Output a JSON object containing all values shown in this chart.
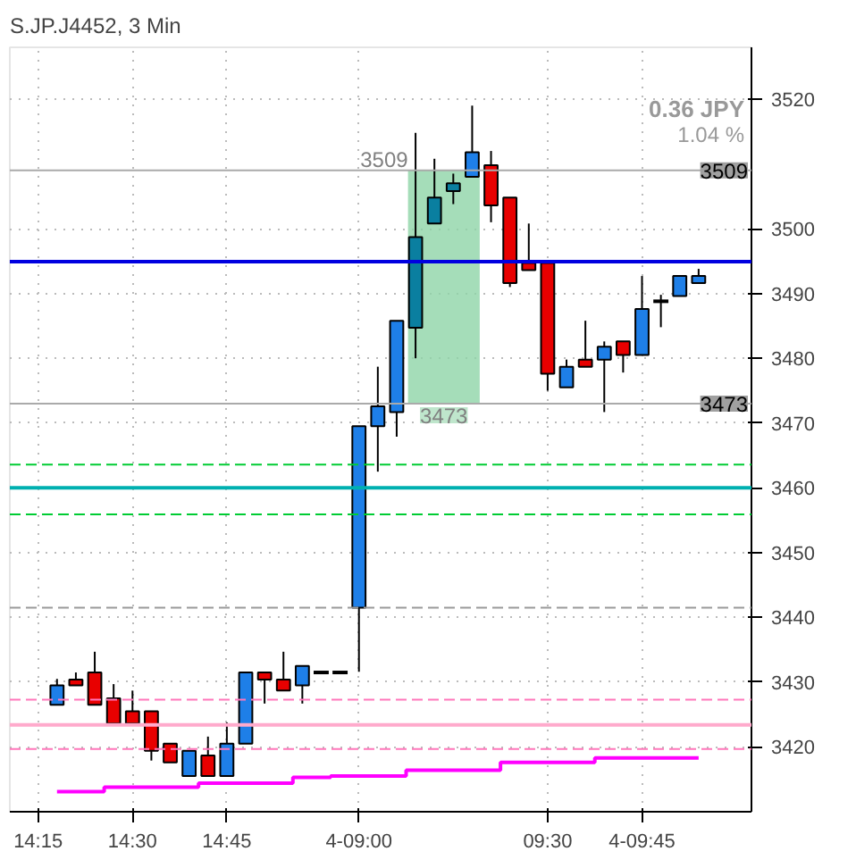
{
  "chart_data": {
    "type": "candlestick",
    "title": "S.JP.J4452, 3 Min",
    "categories": [
      "14:15",
      null,
      null,
      null,
      null,
      "14:30",
      null,
      null,
      null,
      null,
      "14:45",
      null,
      null,
      null,
      null,
      null,
      null,
      "4-09:00",
      null,
      null,
      null,
      null,
      null,
      null,
      null,
      null,
      null,
      "09:30",
      null,
      null,
      null,
      null,
      "4-09:45",
      null,
      null,
      null
    ],
    "ohlc": [
      null,
      [
        3426.5,
        3430.5,
        3426.5,
        3429.5
      ],
      [
        3430.4,
        3431.5,
        3429.5,
        3429.5
      ],
      [
        3431.5,
        3434.7,
        3426.5,
        3426.5
      ],
      [
        3427.5,
        3429.7,
        3423.6,
        3423.6
      ],
      [
        3425.5,
        3428.7,
        3423.6,
        3423.6
      ],
      [
        3425.5,
        3425.5,
        3417.9,
        3419.4
      ],
      [
        3420.5,
        3420.5,
        3417.6,
        3417.6
      ],
      [
        3415.5,
        3419.4,
        3415.5,
        3419.4
      ],
      [
        3418.7,
        3421.6,
        3415.5,
        3415.5
      ],
      [
        3415.5,
        3423.8,
        3415.5,
        3420.5
      ],
      [
        3420.5,
        3431.5,
        3420.5,
        3431.5
      ],
      [
        3431.5,
        3431.5,
        3426.7,
        3430.4
      ],
      [
        3430.4,
        3434.7,
        3428.7,
        3428.7
      ],
      [
        3429.5,
        3432.5,
        3426.7,
        3432.5
      ],
      [
        3431.5,
        3431.5,
        3431.5,
        3431.5
      ],
      [
        3431.5,
        3431.5,
        3431.5,
        3431.5
      ],
      [
        3441.5,
        3469.5,
        3431.6,
        3469.5
      ],
      [
        3469.5,
        3478.7,
        3462.5,
        3472.6
      ],
      [
        3471.7,
        3485.8,
        3467.9,
        3485.8
      ],
      [
        3484.7,
        3514.8,
        3480,
        3498.7
      ],
      [
        3500.8,
        3510.8,
        3500.8,
        3504.8
      ],
      [
        3505.8,
        3508.5,
        3503.8,
        3507
      ],
      [
        3508,
        3519,
        3508,
        3511.8
      ],
      [
        3509.8,
        3512,
        3501,
        3503.6
      ],
      [
        3504.8,
        3504.8,
        3491,
        3491.6
      ],
      [
        3494.7,
        3500.8,
        3493.6,
        3493.6
      ],
      [
        3494.7,
        3494.7,
        3475,
        3477.6
      ],
      [
        3475.5,
        3479.8,
        3475.5,
        3478.7
      ],
      [
        3479.8,
        3485.8,
        3478.7,
        3478.7
      ],
      [
        3479.8,
        3482.6,
        3471.7,
        3481.8
      ],
      [
        3482.6,
        3482.6,
        3477.8,
        3480.5
      ],
      [
        3480.5,
        3492.7,
        3480.5,
        3487.6
      ],
      [
        3488.8,
        3489.8,
        3484.8,
        3488.8
      ],
      [
        3489.6,
        3492.7,
        3489.6,
        3492.7
      ],
      [
        3491.6,
        3493.8,
        3491.6,
        3492.7
      ]
    ],
    "colors": [
      null,
      "#1e7fe8",
      "#e80000",
      "#e80000",
      "#e80000",
      "#e80000",
      "#e80000",
      "#e80000",
      "#1e7fe8",
      "#e80000",
      "#1e7fe8",
      "#1e7fe8",
      "#e80000",
      "#e80000",
      "#1e7fe8",
      "#000000",
      "#000000",
      "#1e7fe8",
      "#1e7fe8",
      "#1e7fe8",
      "#0a7fa0",
      "#0a7fa0",
      "#0a7fa0",
      "#1e7fe8",
      "#e80000",
      "#e80000",
      "#e80000",
      "#e80000",
      "#1e7fe8",
      "#e80000",
      "#1e7fe8",
      "#e80000",
      "#1e7fe8",
      "#000000",
      "#1e7fe8",
      "#1e7fe8"
    ],
    "series": [
      {
        "type": "step",
        "color": "#ff00ff",
        "values": [
          null,
          3413.1,
          3413.1,
          3413.1,
          3413.8,
          3413.8,
          3413.8,
          3413.8,
          3413.8,
          3414.4,
          3414.4,
          3414.4,
          3414.4,
          3414.4,
          3415.3,
          3415.3,
          3415.5,
          3415.5,
          3415.5,
          3415.5,
          3416.4,
          3416.4,
          3416.4,
          3416.4,
          3416.4,
          3417.6,
          3417.6,
          3417.6,
          3417.6,
          3417.6,
          3418.3,
          3418.3,
          3418.3,
          3418.3,
          3418.3,
          3418.3
        ]
      }
    ],
    "ref_lines": [
      {
        "axis": "y",
        "value": 3494.9,
        "color": "#0000e0",
        "line_style": "solid"
      },
      {
        "axis": "y",
        "value": 3463.6,
        "color": "#00cc33",
        "line_style": "dashed"
      },
      {
        "axis": "y",
        "value": 3460,
        "color": "#00b0b0",
        "line_style": "solid"
      },
      {
        "axis": "y",
        "value": 3455.9,
        "color": "#00cc33",
        "line_style": "dashed"
      },
      {
        "axis": "y",
        "value": 3441.5,
        "color": "#999999",
        "line_style": "dashed"
      },
      {
        "axis": "y",
        "value": 3427.3,
        "color": "#ff77bb",
        "line_style": "dashed"
      },
      {
        "axis": "y",
        "value": 3423.4,
        "color": "#ffaacc",
        "line_style": "solid"
      },
      {
        "axis": "y",
        "value": 3419.7,
        "color": "#ff77bb",
        "line_style": "dashed"
      },
      {
        "axis": "y",
        "value": 3509,
        "color": "#aaaaaa",
        "line_style": "solid",
        "label": "3509"
      },
      {
        "axis": "y",
        "value": 3473,
        "color": "#aaaaaa",
        "line_style": "solid",
        "label": "3473"
      }
    ],
    "bands": [
      {
        "axis": "y",
        "from": 3473,
        "to": 3509,
        "color": "#8fd4a8"
      }
    ],
    "annotations": [
      "0.36 JPY",
      "1.04 %",
      {
        "text": "3509",
        "y": 3509
      },
      {
        "text": "3473",
        "y": 3473
      }
    ],
    "ylim": [
      3410,
      3528
    ],
    "yticks": [
      3420,
      3430,
      3440,
      3450,
      3460,
      3470,
      3480,
      3490,
      3500,
      3520
    ],
    "grid": true
  }
}
